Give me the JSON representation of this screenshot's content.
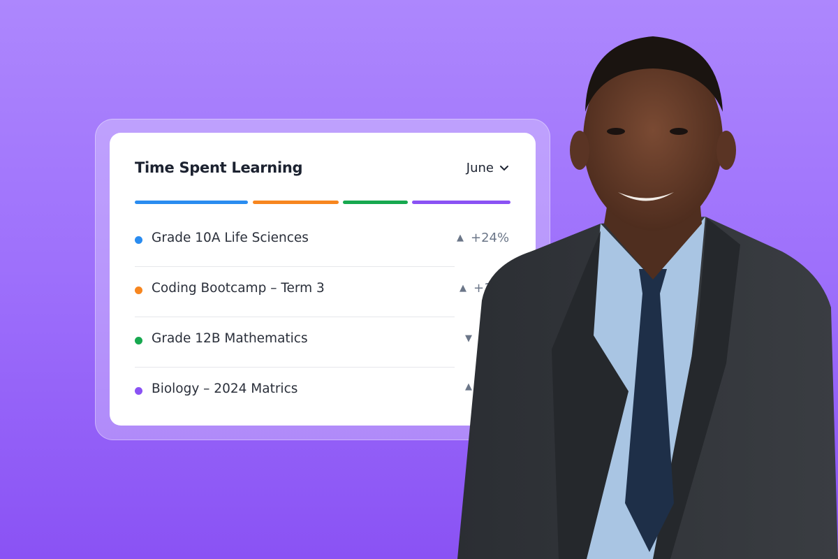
{
  "card": {
    "title": "Time Spent Learning",
    "month_select": "June",
    "segments": [
      {
        "color": "#2a8cf0",
        "share": 0.3
      },
      {
        "color": "#f7861f",
        "share": 0.23
      },
      {
        "color": "#17a84f",
        "share": 0.175
      },
      {
        "color": "#8a52f4",
        "share": 0.265
      }
    ],
    "rows": [
      {
        "label": "Grade 10A Life Sciences",
        "color": "#2a8cf0",
        "trend": "up",
        "trend_icon": "▲",
        "change": "+24%"
      },
      {
        "label": "Coding Bootcamp – Term 3",
        "color": "#f7861f",
        "trend": "up",
        "trend_icon": "▲",
        "change": "+16"
      },
      {
        "label": "Grade 12B Mathematics",
        "color": "#17a84f",
        "trend": "down",
        "trend_icon": "▼",
        "change": "-"
      },
      {
        "label": "Biology – 2024 Matrics",
        "color": "#8a52f4",
        "trend": "up",
        "trend_icon": "▲",
        "change": ""
      }
    ]
  }
}
